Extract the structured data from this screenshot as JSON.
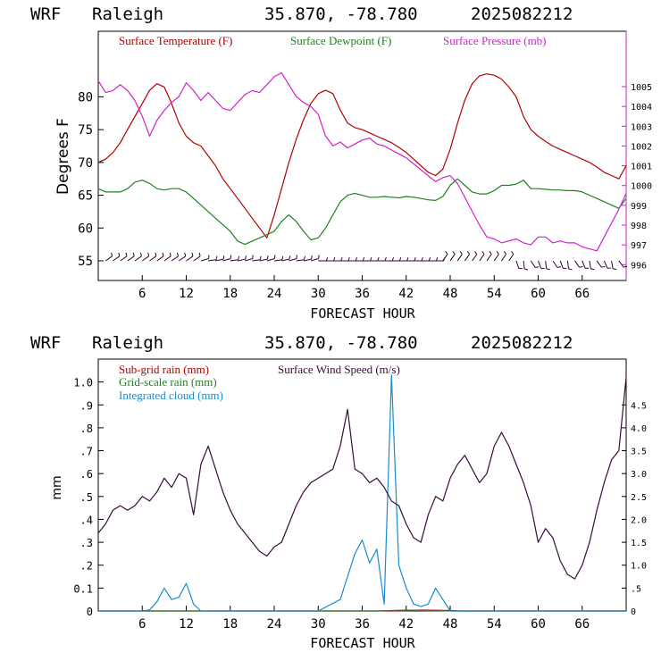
{
  "chart_data": [
    {
      "type": "line",
      "header": {
        "model": "WRF",
        "station": "Raleigh",
        "coords": "35.870, -78.780",
        "init": "2025082212"
      },
      "xlabel": "FORECAST HOUR",
      "ylabel": "Degrees F",
      "xlim": [
        0,
        72
      ],
      "ylim": [
        52,
        90
      ],
      "y2lim": [
        995.2,
        1007.8
      ],
      "x_ticks": [
        "6",
        "12",
        "18",
        "24",
        "30",
        "36",
        "42",
        "48",
        "54",
        "60",
        "66"
      ],
      "y_ticks": [
        "55",
        "60",
        "65",
        "70",
        "75",
        "80"
      ],
      "y2_ticks": [
        "996",
        "997",
        "998",
        "999",
        "1000",
        "1001",
        "1002",
        "1003",
        "1004",
        "1005"
      ],
      "series": [
        {
          "name": "Surface Temperature (F)",
          "color": "#b00000",
          "axis": "left",
          "x": [
            0,
            1,
            2,
            3,
            4,
            5,
            6,
            7,
            8,
            9,
            10,
            11,
            12,
            13,
            14,
            15,
            16,
            17,
            18,
            19,
            20,
            21,
            22,
            23,
            24,
            25,
            26,
            27,
            28,
            29,
            30,
            31,
            32,
            33,
            34,
            35,
            36,
            37,
            38,
            39,
            40,
            41,
            42,
            43,
            44,
            45,
            46,
            47,
            48,
            49,
            50,
            51,
            52,
            53,
            54,
            55,
            56,
            57,
            58,
            59,
            60,
            61,
            62,
            63,
            64,
            65,
            66,
            67,
            68,
            69,
            70,
            71,
            72
          ],
          "values": [
            70,
            70.5,
            71.5,
            73,
            75,
            77,
            79,
            81,
            82,
            81.5,
            79,
            76,
            74,
            73,
            72.5,
            71,
            69.5,
            67.5,
            66,
            64.5,
            63,
            61.5,
            60,
            58.5,
            62,
            66,
            70,
            73.5,
            76.5,
            79,
            80.5,
            81,
            80.5,
            78,
            76,
            75.3,
            75,
            74.5,
            74,
            73.5,
            73,
            72.3,
            71.5,
            70.5,
            69.5,
            68.5,
            68,
            69,
            72,
            76,
            79.5,
            82,
            83.2,
            83.5,
            83.3,
            82.7,
            81.5,
            80,
            77,
            75,
            74,
            73.2,
            72.5,
            72,
            71.5,
            71,
            70.5,
            70,
            69.3,
            68.5,
            68,
            67.5,
            69.5
          ]
        },
        {
          "name": "Surface Dewpoint (F)",
          "color": "#208020",
          "axis": "left",
          "x": [
            0,
            1,
            2,
            3,
            4,
            5,
            6,
            7,
            8,
            9,
            10,
            11,
            12,
            13,
            14,
            15,
            16,
            17,
            18,
            19,
            20,
            21,
            22,
            23,
            24,
            25,
            26,
            27,
            28,
            29,
            30,
            31,
            32,
            33,
            34,
            35,
            36,
            37,
            38,
            39,
            40,
            41,
            42,
            43,
            44,
            45,
            46,
            47,
            48,
            49,
            50,
            51,
            52,
            53,
            54,
            55,
            56,
            57,
            58,
            59,
            60,
            61,
            62,
            63,
            64,
            65,
            66,
            67,
            68,
            69,
            70,
            71,
            72
          ],
          "values": [
            66,
            65.5,
            65.5,
            65.5,
            66,
            67,
            67.3,
            66.8,
            66,
            65.8,
            66,
            66,
            65.5,
            64.5,
            63.5,
            62.5,
            61.5,
            60.5,
            59.5,
            58,
            57.5,
            58,
            58.5,
            59,
            59.5,
            61,
            62,
            61,
            59.5,
            58.2,
            58.5,
            60,
            62,
            64,
            65,
            65.3,
            65,
            64.7,
            64.7,
            64.8,
            64.7,
            64.6,
            64.8,
            64.7,
            64.5,
            64.3,
            64.2,
            64.8,
            66.5,
            67.5,
            66.5,
            65.5,
            65.2,
            65.2,
            65.7,
            66.5,
            66.5,
            66.7,
            67.3,
            66,
            66,
            65.9,
            65.8,
            65.8,
            65.7,
            65.7,
            65.5,
            65,
            64.5,
            64,
            63.5,
            63,
            64.5
          ]
        },
        {
          "name": "Surface Pressure (mb)",
          "color": "#d020d0",
          "axis": "right",
          "x": [
            0,
            1,
            2,
            3,
            4,
            5,
            6,
            7,
            8,
            9,
            10,
            11,
            12,
            13,
            14,
            15,
            16,
            17,
            18,
            19,
            20,
            21,
            22,
            23,
            24,
            25,
            26,
            27,
            28,
            29,
            30,
            31,
            32,
            33,
            34,
            35,
            36,
            37,
            38,
            39,
            40,
            41,
            42,
            43,
            44,
            45,
            46,
            47,
            48,
            49,
            50,
            51,
            52,
            53,
            54,
            55,
            56,
            57,
            58,
            59,
            60,
            61,
            62,
            63,
            64,
            65,
            66,
            67,
            68,
            69,
            70,
            71,
            72
          ],
          "values": [
            1005.3,
            1004.7,
            1004.8,
            1005.1,
            1004.8,
            1004.3,
            1003.5,
            1002.5,
            1003.3,
            1003.8,
            1004.2,
            1004.5,
            1005.2,
            1004.8,
            1004.3,
            1004.7,
            1004.3,
            1003.9,
            1003.8,
            1004.2,
            1004.6,
            1004.8,
            1004.7,
            1005.1,
            1005.5,
            1005.7,
            1005.1,
            1004.5,
            1004.2,
            1004,
            1003.6,
            1002.5,
            1002,
            1002.2,
            1001.9,
            1002.1,
            1002.3,
            1002.4,
            1002.1,
            1002,
            1001.8,
            1001.6,
            1001.4,
            1001.1,
            1000.8,
            1000.5,
            1000.2,
            1000.4,
            1000.5,
            1000.1,
            999.4,
            998.7,
            998,
            997.4,
            997.3,
            997.1,
            997.2,
            997.3,
            997.1,
            997,
            997.4,
            997.4,
            997.1,
            997.2,
            997.1,
            997.1,
            996.9,
            996.8,
            996.7,
            997.4,
            998.1,
            998.8,
            999.6
          ]
        }
      ],
      "wind_barbs": {
        "color": "#300030",
        "y": 55
      }
    },
    {
      "type": "line",
      "header": {
        "model": "WRF",
        "station": "Raleigh",
        "coords": "35.870, -78.780",
        "init": "2025082212"
      },
      "xlabel": "FORECAST HOUR",
      "ylabel": "mm",
      "xlim": [
        0,
        72
      ],
      "ylim": [
        0,
        1.1
      ],
      "y2lim": [
        0,
        5.5
      ],
      "x_ticks": [
        "6",
        "12",
        "18",
        "24",
        "30",
        "36",
        "42",
        "48",
        "54",
        "60",
        "66"
      ],
      "y_ticks": [
        "0",
        "0.1",
        ".2",
        ".3",
        ".4",
        ".5",
        ".6",
        ".7",
        ".8",
        ".9",
        "1.0"
      ],
      "y2_ticks": [
        "0",
        ".5",
        "1.0",
        "1.5",
        "2.0",
        "2.5",
        "3.0",
        "3.5",
        "4.0",
        "4.5"
      ],
      "series": [
        {
          "name": "Sub-grid rain (mm)",
          "color": "#b00000",
          "axis": "left",
          "x": [
            0,
            10,
            20,
            30,
            38,
            40,
            42,
            44,
            46,
            48,
            50,
            72
          ],
          "values": [
            0,
            0,
            0,
            0,
            0,
            0,
            0.002,
            0.004,
            0.003,
            0.002,
            0,
            0
          ]
        },
        {
          "name": "Grid-scale rain (mm)",
          "color": "#208020",
          "axis": "left",
          "x": [
            0,
            20,
            38,
            40,
            41,
            42,
            43,
            44,
            46,
            48,
            50,
            72
          ],
          "values": [
            0,
            0,
            0,
            0.002,
            0.003,
            0.004,
            0.003,
            0.002,
            0.001,
            0,
            0,
            0
          ]
        },
        {
          "name": "Integrated cloud (mm)",
          "color": "#1a8ad0",
          "axis": "left",
          "x": [
            0,
            6,
            7,
            8,
            9,
            10,
            11,
            12,
            13,
            14,
            22,
            30,
            33,
            34,
            35,
            36,
            37,
            38,
            39,
            40,
            41,
            42,
            43,
            44,
            45,
            46,
            47,
            48,
            72
          ],
          "values": [
            0,
            0,
            0.005,
            0.04,
            0.1,
            0.05,
            0.06,
            0.12,
            0.03,
            0,
            0,
            0,
            0.05,
            0.15,
            0.25,
            0.31,
            0.21,
            0.27,
            0.03,
            1.03,
            0.2,
            0.1,
            0.03,
            0.02,
            0.03,
            0.1,
            0.05,
            0,
            0
          ]
        },
        {
          "name": "Surface Wind Speed (m/s)",
          "color": "#3a0a3a",
          "axis": "right",
          "x": [
            0,
            1,
            2,
            3,
            4,
            5,
            6,
            7,
            8,
            9,
            10,
            11,
            12,
            13,
            14,
            15,
            16,
            17,
            18,
            19,
            20,
            21,
            22,
            23,
            24,
            25,
            26,
            27,
            28,
            29,
            30,
            31,
            32,
            33,
            34,
            35,
            36,
            37,
            38,
            39,
            40,
            41,
            42,
            43,
            44,
            45,
            46,
            47,
            48,
            49,
            50,
            51,
            52,
            53,
            54,
            55,
            56,
            57,
            58,
            59,
            60,
            61,
            62,
            63,
            64,
            65,
            66,
            67,
            68,
            69,
            70,
            71,
            72
          ],
          "values": [
            1.7,
            1.9,
            2.2,
            2.3,
            2.2,
            2.3,
            2.5,
            2.4,
            2.6,
            2.9,
            2.7,
            3,
            2.9,
            2.1,
            3.2,
            3.6,
            3.1,
            2.6,
            2.2,
            1.9,
            1.7,
            1.5,
            1.3,
            1.2,
            1.4,
            1.5,
            1.9,
            2.3,
            2.6,
            2.8,
            2.9,
            3,
            3.1,
            3.6,
            4.4,
            3.1,
            3,
            2.8,
            2.9,
            2.7,
            2.4,
            2.3,
            1.9,
            1.6,
            1.5,
            2.1,
            2.5,
            2.4,
            2.9,
            3.2,
            3.4,
            3.1,
            2.8,
            3,
            3.6,
            3.9,
            3.6,
            3.2,
            2.8,
            2.3,
            1.5,
            1.8,
            1.6,
            1.1,
            0.8,
            0.7,
            1,
            1.5,
            2.2,
            2.8,
            3.3,
            3.5,
            5.1
          ]
        }
      ]
    }
  ]
}
